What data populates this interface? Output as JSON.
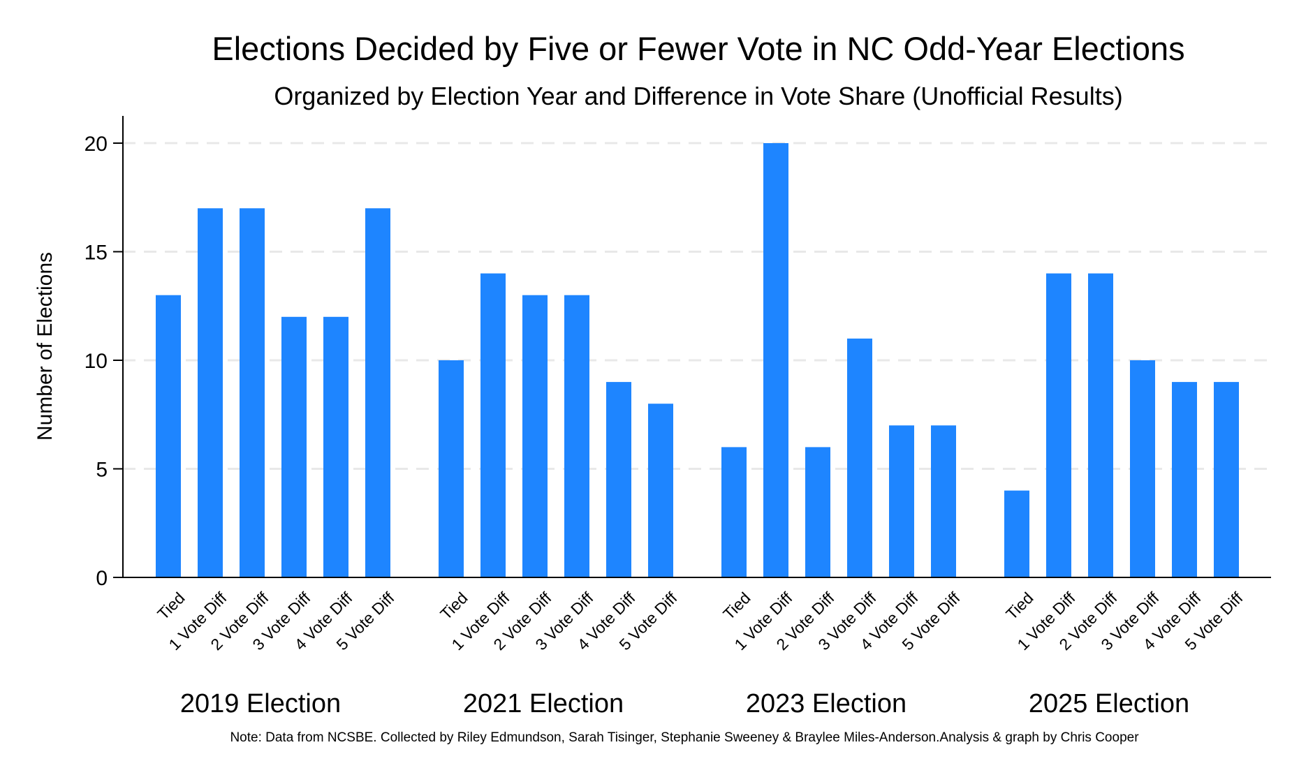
{
  "chart_data": {
    "type": "bar",
    "title": "Elections Decided by Five or Fewer Vote in NC Odd-Year Elections",
    "subtitle": "Organized by Election Year and Difference in Vote Share (Unofficial Results)",
    "ylabel": "Number of Elections",
    "xlabel": "",
    "ylim": [
      0,
      21
    ],
    "yticks": [
      0,
      5,
      10,
      15,
      20
    ],
    "grid": true,
    "color": "#1e85ff",
    "categories": [
      "Tied",
      "1 Vote Diff",
      "2 Vote Diff",
      "3 Vote Diff",
      "4 Vote Diff",
      "5 Vote Diff"
    ],
    "groups": [
      {
        "name": "2019 Election",
        "values": [
          13,
          17,
          17,
          12,
          12,
          17
        ]
      },
      {
        "name": "2021 Election",
        "values": [
          10,
          14,
          13,
          13,
          9,
          8
        ]
      },
      {
        "name": "2023 Election",
        "values": [
          6,
          20,
          6,
          11,
          7,
          7
        ]
      },
      {
        "name": "2025 Election",
        "values": [
          4,
          14,
          14,
          10,
          9,
          9
        ]
      }
    ],
    "note": "Note: Data from NCSBE. Collected by Riley Edmundson, Sarah Tisinger, Stephanie Sweeney & Braylee Miles-Anderson.Analysis & graph by Chris Cooper"
  }
}
